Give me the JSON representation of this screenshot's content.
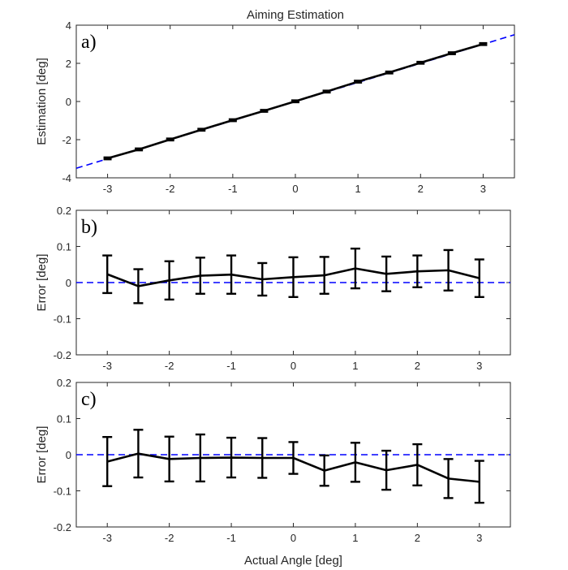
{
  "chart_data": [
    {
      "type": "line",
      "panel": "a)",
      "title": "Aiming Estimation",
      "xlabel": "",
      "ylabel": "Estimation [deg]",
      "xlim": [
        -3.5,
        3.5
      ],
      "ylim": [
        -4,
        4
      ],
      "xticks": [
        -3,
        -2,
        -1,
        0,
        1,
        2,
        3
      ],
      "yticks": [
        -4,
        -2,
        0,
        2,
        4
      ],
      "x": [
        -3,
        -2.5,
        -2,
        -1.5,
        -1,
        -0.5,
        0,
        0.5,
        1,
        1.5,
        2,
        2.5,
        3
      ],
      "series": [
        {
          "values": [
            -2.98,
            -2.51,
            -1.99,
            -1.48,
            -0.98,
            -0.49,
            0.01,
            0.52,
            1.04,
            1.52,
            2.03,
            2.53,
            3.01
          ],
          "err": [
            0.05,
            0.05,
            0.05,
            0.05,
            0.05,
            0.05,
            0.05,
            0.05,
            0.05,
            0.05,
            0.05,
            0.05,
            0.05
          ],
          "color": "#000000",
          "style": "solid"
        },
        {
          "x": [
            -3.5,
            3.5
          ],
          "values": [
            -3.5,
            3.5
          ],
          "color": "#0000ff",
          "style": "dashed"
        }
      ],
      "grid": false
    },
    {
      "type": "line",
      "panel": "b)",
      "title": "",
      "xlabel": "",
      "ylabel": "Error [deg]",
      "xlim": [
        -3.5,
        3.5
      ],
      "ylim": [
        -0.2,
        0.2
      ],
      "xticks": [
        -3,
        -2,
        -1,
        0,
        1,
        2,
        3
      ],
      "yticks": [
        -0.2,
        -0.1,
        0,
        0.1,
        0.2
      ],
      "x": [
        -3,
        -2.5,
        -2,
        -1.5,
        -1,
        -0.5,
        0,
        0.5,
        1,
        1.5,
        2,
        2.5,
        3
      ],
      "series": [
        {
          "values": [
            0.023,
            -0.01,
            0.006,
            0.019,
            0.022,
            0.009,
            0.015,
            0.02,
            0.039,
            0.024,
            0.031,
            0.034,
            0.012
          ],
          "err": [
            0.052,
            0.047,
            0.053,
            0.05,
            0.053,
            0.045,
            0.055,
            0.051,
            0.055,
            0.048,
            0.044,
            0.056,
            0.052
          ],
          "color": "#000000",
          "style": "solid"
        },
        {
          "x": [
            -3.5,
            3.5
          ],
          "values": [
            0,
            0
          ],
          "color": "#0000ff",
          "style": "dashed"
        }
      ],
      "grid": false
    },
    {
      "type": "line",
      "panel": "c)",
      "title": "",
      "xlabel": "Actual Angle [deg]",
      "ylabel": "Error [deg]",
      "xlim": [
        -3.5,
        3.5
      ],
      "ylim": [
        -0.2,
        0.2
      ],
      "xticks": [
        -3,
        -2,
        -1,
        0,
        1,
        2,
        3
      ],
      "yticks": [
        -0.2,
        -0.1,
        0,
        0.1,
        0.2
      ],
      "x": [
        -3,
        -2.5,
        -2,
        -1.5,
        -1,
        -0.5,
        0,
        0.5,
        1,
        1.5,
        2,
        2.5,
        3
      ],
      "series": [
        {
          "values": [
            -0.019,
            0.003,
            -0.012,
            -0.009,
            -0.008,
            -0.009,
            -0.009,
            -0.044,
            -0.021,
            -0.043,
            -0.028,
            -0.066,
            -0.075
          ],
          "err": [
            0.068,
            0.066,
            0.062,
            0.065,
            0.055,
            0.055,
            0.044,
            0.042,
            0.054,
            0.054,
            0.057,
            0.054,
            0.058
          ],
          "color": "#000000",
          "style": "solid"
        },
        {
          "x": [
            -3.5,
            3.5
          ],
          "values": [
            0,
            0
          ],
          "color": "#0000ff",
          "style": "dashed"
        }
      ],
      "grid": false
    }
  ]
}
